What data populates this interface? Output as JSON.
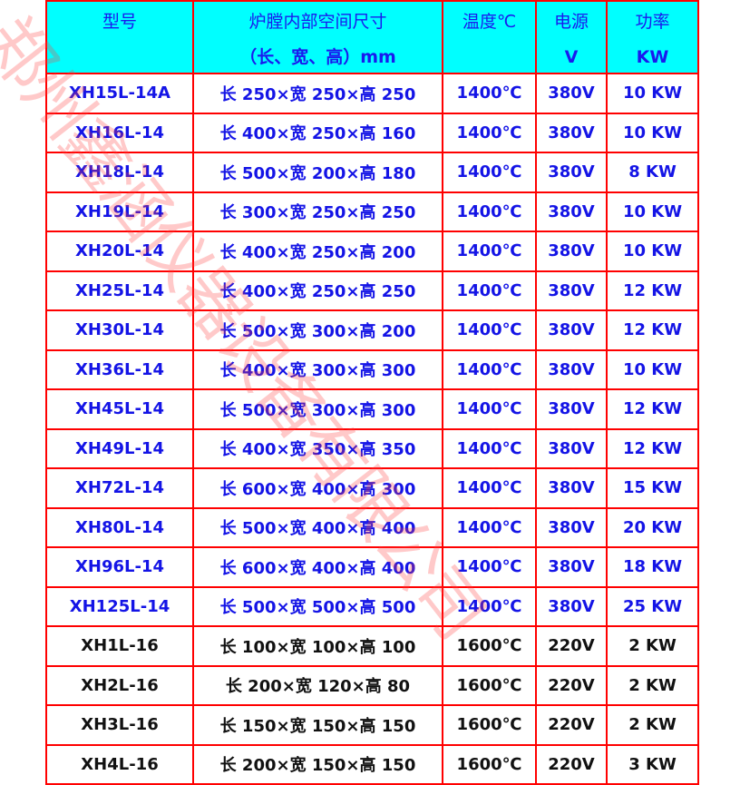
{
  "header": {
    "model": "型号",
    "size_line1": "炉膛内部空间尺寸",
    "size_line2": "（长、宽、高）mm",
    "temp": "温度℃",
    "power_supply": "电源",
    "power_supply_unit": "V",
    "power": "功率",
    "power_unit": "KW"
  },
  "rows": [
    {
      "model": "XH15L-14A",
      "size": "长 250×宽 250×高 250",
      "temp": "1400℃",
      "voltage": "380V",
      "power": "10 KW"
    },
    {
      "model": "XH16L-14",
      "size": "长 400×宽 250×高 160",
      "temp": "1400℃",
      "voltage": "380V",
      "power": "10 KW"
    },
    {
      "model": "XH18L-14",
      "size": "长 500×宽 200×高 180",
      "temp": "1400℃",
      "voltage": "380V",
      "power": "8 KW"
    },
    {
      "model": "XH19L-14",
      "size": "长 300×宽 250×高 250",
      "temp": "1400℃",
      "voltage": "380V",
      "power": "10 KW"
    },
    {
      "model": "XH20L-14",
      "size": "长 400×宽 250×高 200",
      "temp": "1400℃",
      "voltage": "380V",
      "power": "10 KW"
    },
    {
      "model": "XH25L-14",
      "size": "长 400×宽 250×高 250",
      "temp": "1400℃",
      "voltage": "380V",
      "power": "12 KW"
    },
    {
      "model": "XH30L-14",
      "size": "长 500×宽 300×高 200",
      "temp": "1400℃",
      "voltage": "380V",
      "power": "12 KW"
    },
    {
      "model": "XH36L-14",
      "size": "长 400×宽 300×高 300",
      "temp": "1400℃",
      "voltage": "380V",
      "power": "10 KW"
    },
    {
      "model": "XH45L-14",
      "size": "长 500×宽 300×高 300",
      "temp": "1400℃",
      "voltage": "380V",
      "power": "12 KW"
    },
    {
      "model": "XH49L-14",
      "size": "长 400×宽 350×高 350",
      "temp": "1400℃",
      "voltage": "380V",
      "power": "12 KW"
    },
    {
      "model": "XH72L-14",
      "size": "长 600×宽 400×高 300",
      "temp": "1400℃",
      "voltage": "380V",
      "power": "15 KW"
    },
    {
      "model": "XH80L-14",
      "size": "长 500×宽 400×高 400",
      "temp": "1400℃",
      "voltage": "380V",
      "power": "20 KW"
    },
    {
      "model": "XH96L-14",
      "size": "长 600×宽 400×高 400",
      "temp": "1400℃",
      "voltage": "380V",
      "power": "18 KW"
    },
    {
      "model": "XH125L-14",
      "size": "长 500×宽 500×高 500",
      "temp": "1400℃",
      "voltage": "380V",
      "power": "25 KW"
    },
    {
      "model": "XH1L-16",
      "size": "长 100×宽 100×高 100",
      "temp": "1600℃",
      "voltage": "220V",
      "power": "2 KW"
    },
    {
      "model": "XH2L-16",
      "size": "长 200×宽 120×高 80",
      "temp": "1600℃",
      "voltage": "220V",
      "power": "2 KW"
    },
    {
      "model": "XH3L-16",
      "size": "长 150×宽 150×高 150",
      "temp": "1600℃",
      "voltage": "220V",
      "power": "2 KW"
    },
    {
      "model": "XH4L-16",
      "size": "长 200×宽 150×高 150",
      "temp": "1600℃",
      "voltage": "220V",
      "power": "3 KW"
    }
  ],
  "colors": {
    "header_bg": "#00ffff",
    "border": "#ff0000",
    "text_blue": "#1414e6",
    "text_black": "#111111"
  },
  "watermark": "郑州鑫涵仪器设备有限公司"
}
